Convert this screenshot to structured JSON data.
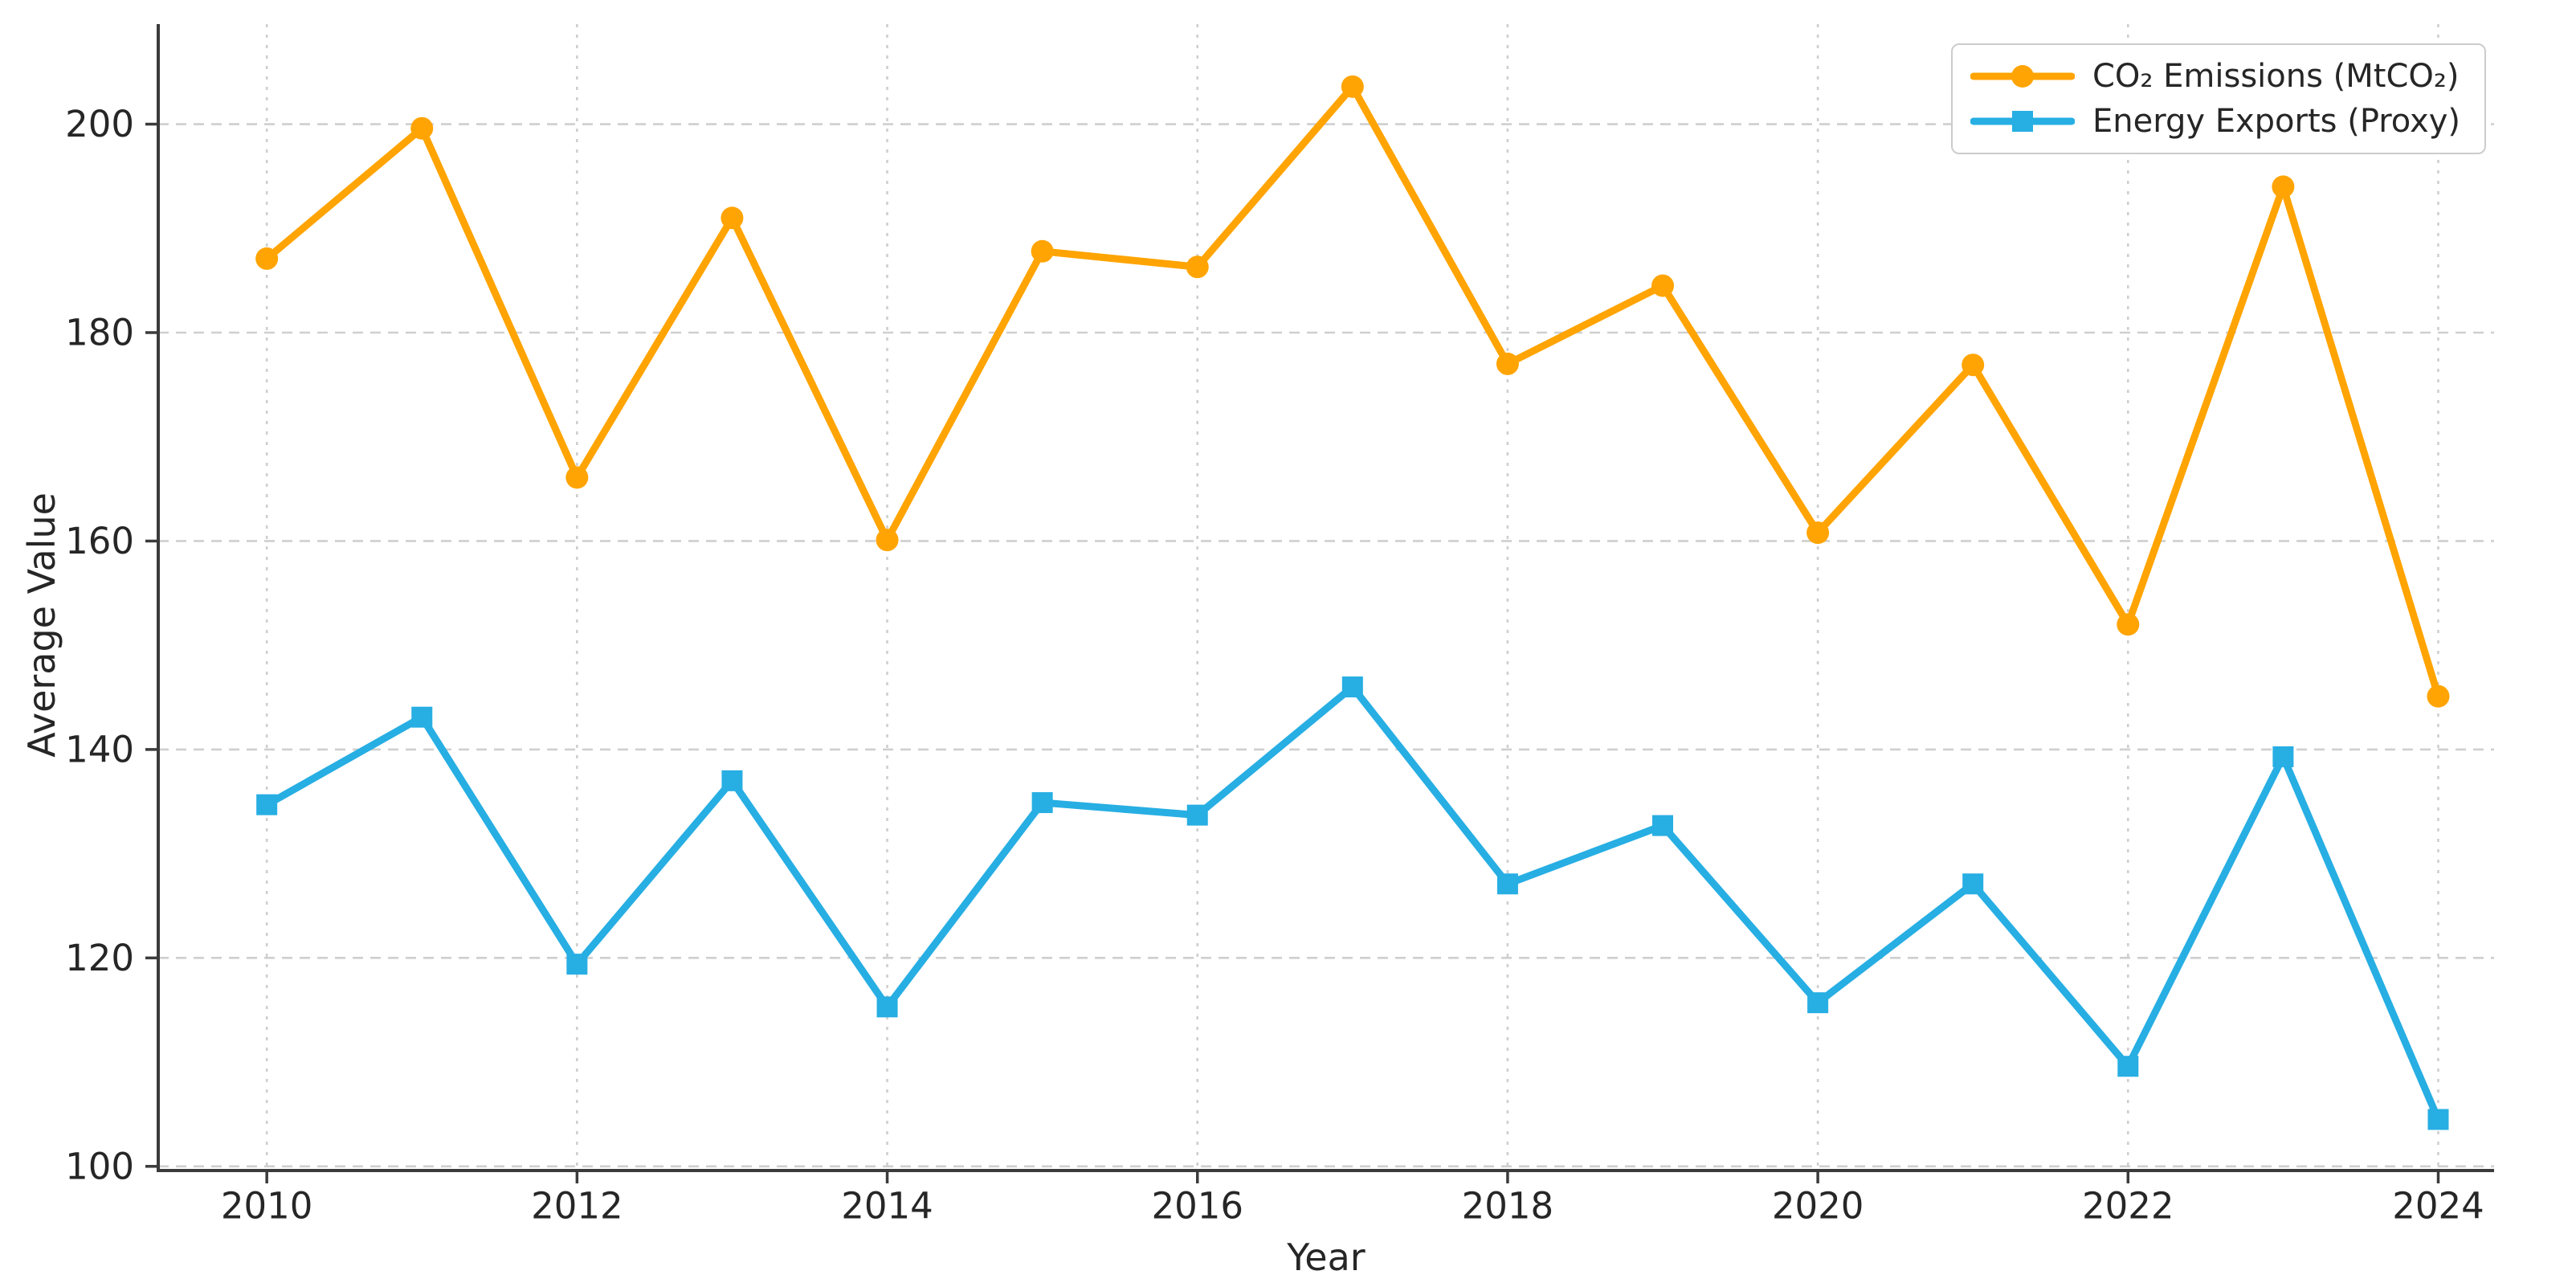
{
  "chart_data": {
    "type": "line",
    "title": "",
    "xlabel": "Year",
    "ylabel": "Average Value",
    "x": [
      2010,
      2011,
      2012,
      2013,
      2014,
      2015,
      2016,
      2017,
      2018,
      2019,
      2020,
      2021,
      2022,
      2023,
      2024
    ],
    "series": [
      {
        "name": "CO₂ Emissions (MtCO₂)",
        "color": "#FFA402",
        "marker": "circle",
        "values": [
          187.1,
          199.6,
          166.1,
          191.0,
          160.1,
          187.8,
          186.3,
          203.6,
          177.0,
          184.5,
          160.8,
          176.9,
          152.0,
          194.0,
          145.1
        ]
      },
      {
        "name": "Energy Exports (Proxy)",
        "color": "#27AEE3",
        "marker": "square",
        "values": [
          134.7,
          143.1,
          119.4,
          137.0,
          115.3,
          134.9,
          133.7,
          146.0,
          127.1,
          132.7,
          115.7,
          127.1,
          109.6,
          139.3,
          104.5
        ]
      }
    ],
    "x_ticks": [
      2010,
      2012,
      2014,
      2016,
      2018,
      2020,
      2022,
      2024
    ],
    "y_ticks": [
      100,
      120,
      140,
      160,
      180,
      200
    ],
    "xlim": [
      2009.3,
      2024.36
    ],
    "ylim": [
      99.6,
      209.6
    ],
    "grid": true,
    "legend_position": "upper right",
    "grid_color": "#cfcfcf",
    "axis_color": "#3b3b3b",
    "tick_label_color": "#262626"
  }
}
